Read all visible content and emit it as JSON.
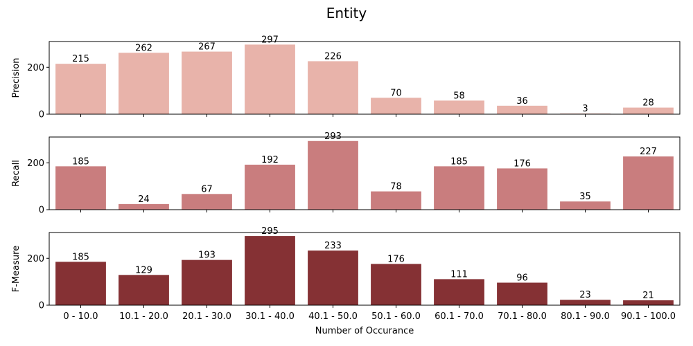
{
  "chart_data": {
    "type": "bar",
    "title": "Entity",
    "xlabel": "Number of Occurance",
    "categories": [
      "0 - 10.0",
      "10.1 - 20.0",
      "20.1 - 30.0",
      "30.1 - 40.0",
      "40.1 - 50.0",
      "50.1 - 60.0",
      "60.1 - 70.0",
      "70.1 - 80.0",
      "80.1 - 90.0",
      "90.1 - 100.0"
    ],
    "ylim": [
      0,
      310
    ],
    "yticks": [
      0,
      200
    ],
    "grid": false,
    "panels": [
      {
        "ylabel": "Precision",
        "color": "#e8b3aa",
        "values": [
          215,
          262,
          267,
          297,
          226,
          70,
          58,
          36,
          3,
          28
        ]
      },
      {
        "ylabel": "Recall",
        "color": "#c97d7e",
        "values": [
          185,
          24,
          67,
          192,
          293,
          78,
          185,
          176,
          35,
          227
        ]
      },
      {
        "ylabel": "F-Measure",
        "color": "#853134",
        "values": [
          185,
          129,
          193,
          295,
          233,
          176,
          111,
          96,
          23,
          21
        ]
      }
    ]
  }
}
